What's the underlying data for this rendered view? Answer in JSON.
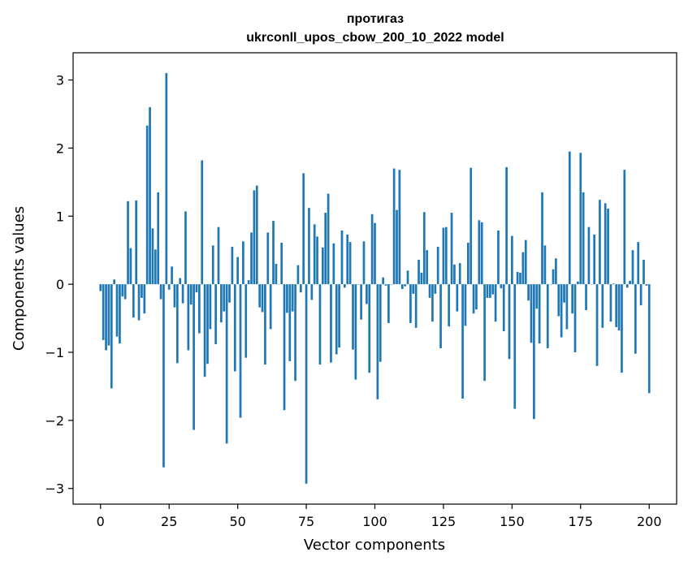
{
  "chart_data": {
    "type": "bar",
    "title_line1": "протигаз",
    "title_line2": "ukrconll_upos_cbow_200_10_2022 model",
    "xlabel": "Vector components",
    "ylabel": "Components values",
    "xlim": [
      -10,
      210
    ],
    "ylim": [
      -3.23,
      3.4
    ],
    "xticks": [
      0,
      25,
      50,
      75,
      100,
      125,
      150,
      175,
      200
    ],
    "yticks": [
      -3,
      -2,
      -1,
      0,
      1,
      2,
      3
    ],
    "xtick_labels": [
      "0",
      "25",
      "50",
      "75",
      "100",
      "125",
      "150",
      "175",
      "200"
    ],
    "ytick_labels": [
      "−3",
      "−2",
      "−1",
      "0",
      "1",
      "2",
      "3"
    ],
    "bar_color": "#1f77b4",
    "values": [
      -0.1,
      -0.82,
      -0.97,
      -0.9,
      -1.53,
      0.07,
      -0.77,
      -0.87,
      -0.18,
      -0.22,
      1.22,
      0.53,
      -0.49,
      1.23,
      -0.53,
      -0.2,
      -0.43,
      2.33,
      2.6,
      0.82,
      0.51,
      1.35,
      -0.22,
      -2.69,
      3.1,
      -0.08,
      0.26,
      -0.34,
      -1.16,
      0.09,
      -0.28,
      1.07,
      -0.97,
      -0.3,
      -2.14,
      -0.12,
      -0.72,
      1.82,
      -1.36,
      -1.17,
      -0.66,
      0.57,
      -0.88,
      0.84,
      -0.56,
      -0.4,
      -2.34,
      -0.27,
      0.55,
      -1.28,
      0.4,
      -1.96,
      0.63,
      -1.08,
      0.06,
      0.76,
      1.38,
      1.45,
      -0.34,
      -0.41,
      -1.18,
      0.76,
      -0.66,
      0.93,
      0.3,
      0.0,
      0.61,
      -1.85,
      -0.42,
      -1.13,
      -0.4,
      -1.42,
      0.28,
      -0.12,
      1.63,
      -2.93,
      1.12,
      -0.23,
      0.88,
      0.7,
      -1.18,
      0.54,
      1.05,
      1.33,
      -1.15,
      0.6,
      -1.03,
      -0.93,
      0.79,
      -0.05,
      0.73,
      0.62,
      -0.96,
      -1.4,
      0.0,
      -0.52,
      0.63,
      -0.29,
      -1.3,
      1.03,
      0.9,
      -1.69,
      -1.14,
      0.1,
      -0.02,
      -0.57,
      0.0,
      1.7,
      1.09,
      1.68,
      -0.07,
      -0.03,
      0.2,
      -0.57,
      -0.14,
      -0.64,
      0.36,
      0.17,
      1.06,
      0.5,
      -0.2,
      -0.55,
      -0.14,
      0.55,
      -0.94,
      0.83,
      0.84,
      -0.62,
      1.05,
      0.29,
      -0.4,
      0.31,
      -1.68,
      -0.61,
      0.61,
      1.71,
      -0.43,
      -0.37,
      0.94,
      0.91,
      -1.42,
      -0.2,
      -0.2,
      -0.15,
      -0.55,
      0.79,
      -0.06,
      -0.69,
      1.72,
      -1.1,
      0.71,
      -1.83,
      0.18,
      0.17,
      0.47,
      0.65,
      -0.24,
      -0.86,
      -1.98,
      -0.36,
      -0.87,
      1.35,
      0.57,
      -0.94,
      0.0,
      0.22,
      0.38,
      -0.47,
      -0.78,
      -0.27,
      -0.66,
      1.95,
      -0.43,
      -1.0,
      0.04,
      1.93,
      1.35,
      -0.38,
      0.84,
      0.0,
      0.73,
      -1.2,
      1.24,
      -0.64,
      1.19,
      1.11,
      -0.55,
      0.01,
      -0.63,
      -0.68,
      -1.3,
      1.68,
      -0.05,
      0.05,
      0.5,
      -1.02,
      0.62,
      -0.31,
      0.36,
      -0.02,
      -1.6
    ]
  }
}
